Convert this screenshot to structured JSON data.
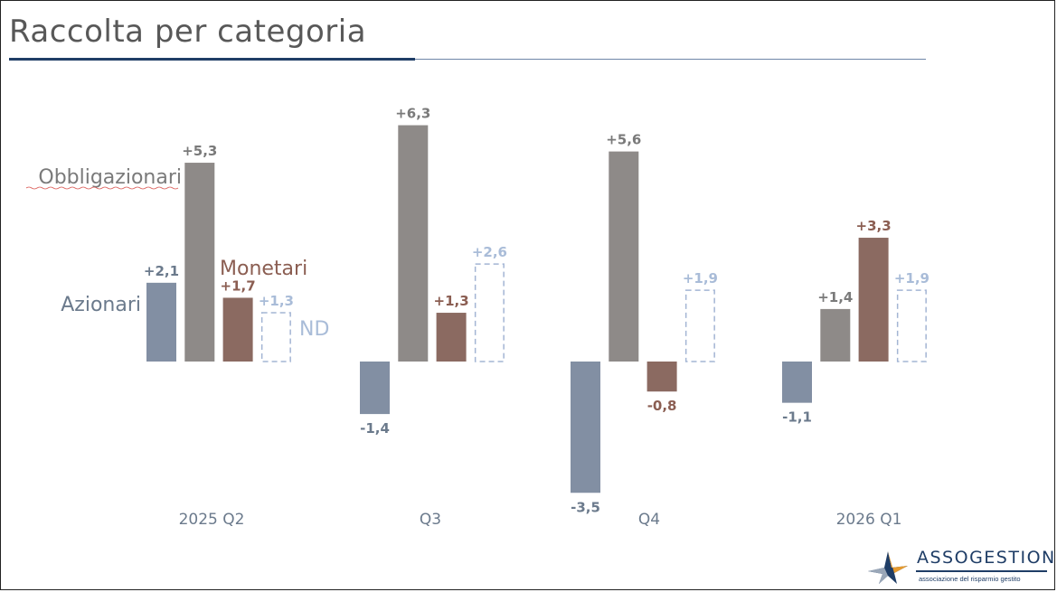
{
  "slide": {
    "title": "Raccolta per categoria"
  },
  "logo": {
    "name": "ASSOGESTIONI",
    "tagline": "associazione del risparmio gestito"
  },
  "colors": {
    "Azionari": "#828fa3",
    "Obbligazionari": "#8e8a88",
    "Monetari": "#8b6a61",
    "ND": "#a3b5d4",
    "label_azionari": "#6b7a8c",
    "label_obbligazionari": "#7a7a7a",
    "label_monetari": "#8b5e52",
    "label_nd": "#a9bcd8",
    "accent": "#1f3d66"
  },
  "chart_data": {
    "type": "bar",
    "title": "Raccolta per categoria",
    "categories": [
      "2025 Q2",
      "Q3",
      "Q4",
      "2026 Q1"
    ],
    "series": [
      {
        "name": "Azionari",
        "values": [
          2.1,
          -1.4,
          -3.5,
          -1.1
        ],
        "labels": [
          "+2,1",
          "-1,4",
          "-3,5",
          "-1,1"
        ]
      },
      {
        "name": "Obbligazionari",
        "values": [
          5.3,
          6.3,
          5.6,
          1.4
        ],
        "labels": [
          "+5,3",
          "+6,3",
          "+5,6",
          "+1,4"
        ]
      },
      {
        "name": "Monetari",
        "values": [
          1.7,
          1.3,
          -0.8,
          3.3
        ],
        "labels": [
          "+1,7",
          "+1,3",
          "-0,8",
          "+3,3"
        ]
      },
      {
        "name": "ND",
        "values": [
          1.3,
          2.6,
          1.9,
          1.9
        ],
        "labels": [
          "+1,3",
          "+2,6",
          "+1,9",
          "+1,9"
        ],
        "style": "dashed-outline"
      }
    ],
    "legend": "inline labels next to first group",
    "grid": false
  }
}
